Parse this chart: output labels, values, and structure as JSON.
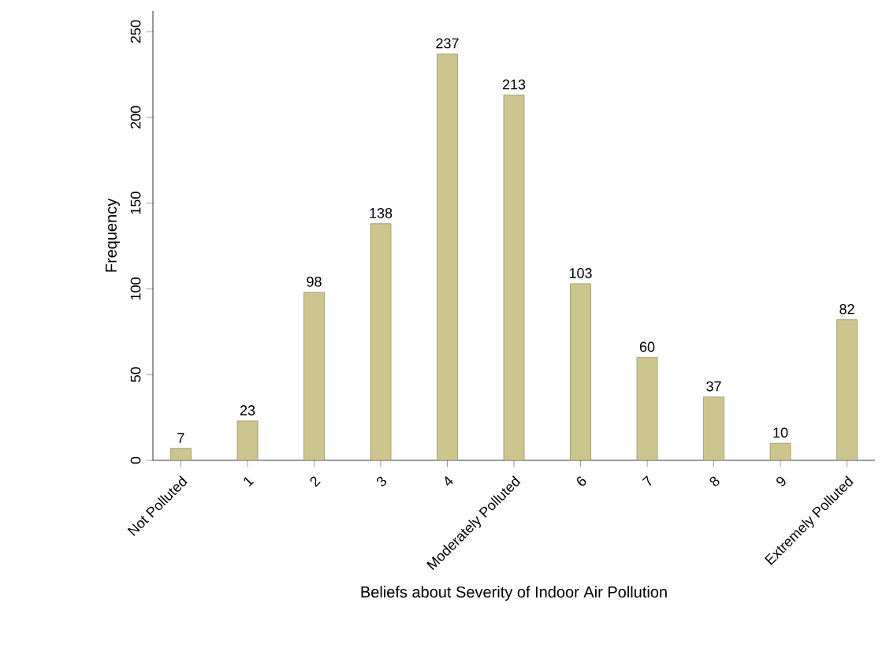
{
  "chart_data": {
    "type": "bar",
    "xlabel": "Beliefs about Severity of Indoor Air Pollution",
    "ylabel": "Frequency",
    "categories": [
      "Not Polluted",
      "1",
      "2",
      "3",
      "4",
      "Moderately Polluted",
      "6",
      "7",
      "8",
      "9",
      "Extremely Polluted"
    ],
    "values": [
      7,
      23,
      98,
      138,
      237,
      213,
      103,
      60,
      37,
      10,
      82
    ],
    "color": "#cdc58e",
    "data_labels": true,
    "grid": false,
    "ylim": [
      0,
      262
    ],
    "yticks": [
      0,
      50,
      100,
      150,
      200,
      250
    ]
  }
}
